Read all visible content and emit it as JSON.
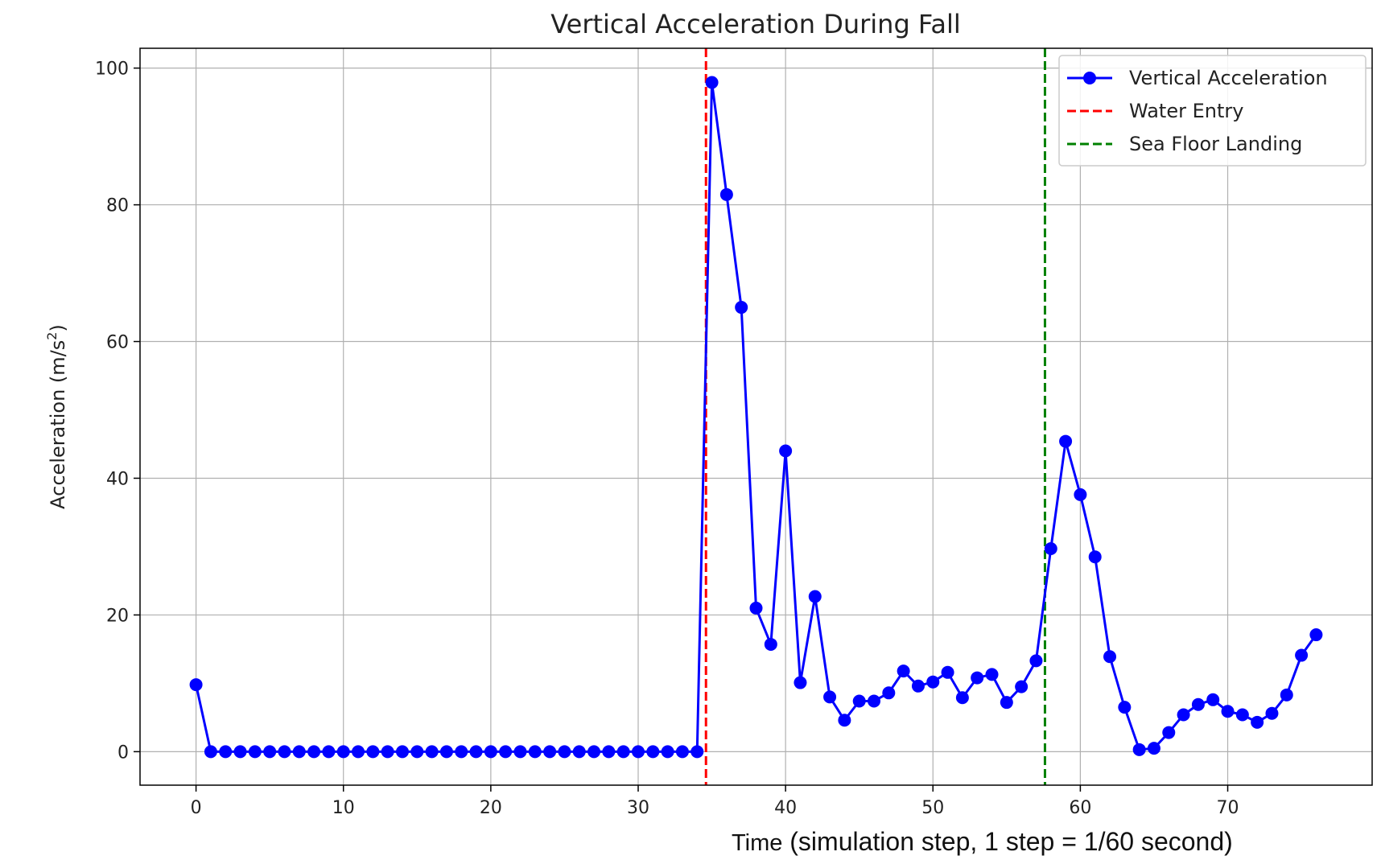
{
  "chart_data": {
    "type": "line",
    "title": "Vertical Acceleration During Fall",
    "xlabel_lead": "Time",
    "xlabel_rest": " (simulation step, 1 step = 1/60 second)",
    "ylabel_main": "Acceleration (m/s",
    "ylabel_sup": "2",
    "ylabel_close": ")",
    "xlim": [
      -3.8,
      79.8
    ],
    "ylim": [
      -4.9,
      102.9
    ],
    "xticks": [
      0,
      10,
      20,
      30,
      40,
      50,
      60,
      70
    ],
    "yticks": [
      0,
      20,
      40,
      60,
      80,
      100
    ],
    "grid": true,
    "legend_position": "top-right",
    "series": [
      {
        "name": "Vertical Acceleration",
        "color": "#0000ff",
        "marker": "circle",
        "x": [
          0,
          1,
          2,
          3,
          4,
          5,
          6,
          7,
          8,
          9,
          10,
          11,
          12,
          13,
          14,
          15,
          16,
          17,
          18,
          19,
          20,
          21,
          22,
          23,
          24,
          25,
          26,
          27,
          28,
          29,
          30,
          31,
          32,
          33,
          34,
          35,
          36,
          37,
          38,
          39,
          40,
          41,
          42,
          43,
          44,
          45,
          46,
          47,
          48,
          49,
          50,
          51,
          52,
          53,
          54,
          55,
          56,
          57,
          58,
          59,
          60,
          61,
          62,
          63,
          64,
          65,
          66,
          67,
          68,
          69,
          70,
          71,
          72,
          73,
          74,
          75,
          76
        ],
        "y": [
          9.8,
          0,
          0,
          0,
          0,
          0,
          0,
          0,
          0,
          0,
          0,
          0,
          0,
          0,
          0,
          0,
          0,
          0,
          0,
          0,
          0,
          0,
          0,
          0,
          0,
          0,
          0,
          0,
          0,
          0,
          0,
          0,
          0,
          0,
          0,
          97.9,
          81.5,
          65,
          21,
          15.7,
          44,
          10.1,
          22.7,
          8,
          4.6,
          7.4,
          7.4,
          8.6,
          11.8,
          9.6,
          10.2,
          11.6,
          7.9,
          10.8,
          11.3,
          7.2,
          9.5,
          13.3,
          29.7,
          45.4,
          37.6,
          28.5,
          13.9,
          6.5,
          0.3,
          0.5,
          2.8,
          5.4,
          6.9,
          7.6,
          5.9,
          5.4,
          4.3,
          5.6,
          8.3,
          14.1,
          17.1
        ]
      },
      {
        "name": "Water Entry",
        "color": "#ff0000",
        "style": "dashed",
        "vline_x": 34.6
      },
      {
        "name": "Sea Floor Landing",
        "color": "#008000",
        "style": "dashed",
        "vline_x": 57.6
      }
    ]
  }
}
